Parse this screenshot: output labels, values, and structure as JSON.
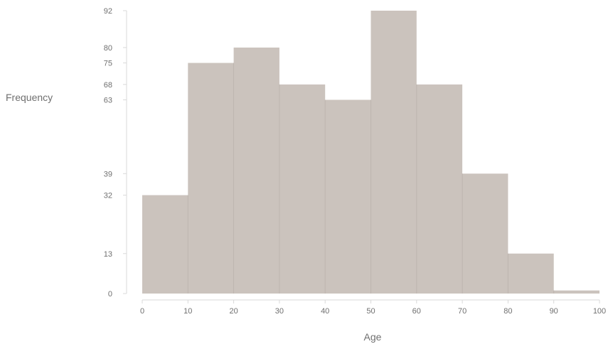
{
  "chart_data": {
    "type": "bar",
    "subtype": "histogram",
    "title": "",
    "xlabel": "Age",
    "ylabel": "Frequency",
    "bins": [
      {
        "start": 0,
        "end": 10,
        "value": 32
      },
      {
        "start": 10,
        "end": 20,
        "value": 75
      },
      {
        "start": 20,
        "end": 30,
        "value": 80
      },
      {
        "start": 30,
        "end": 40,
        "value": 68
      },
      {
        "start": 40,
        "end": 50,
        "value": 63
      },
      {
        "start": 50,
        "end": 60,
        "value": 92
      },
      {
        "start": 60,
        "end": 70,
        "value": 68
      },
      {
        "start": 70,
        "end": 80,
        "value": 39
      },
      {
        "start": 80,
        "end": 90,
        "value": 13
      },
      {
        "start": 90,
        "end": 100,
        "value": 1
      }
    ],
    "x_ticks": [
      "0",
      "10",
      "20",
      "30",
      "40",
      "50",
      "60",
      "70",
      "80",
      "90",
      "100"
    ],
    "y_ticks": [
      "0",
      "13",
      "32",
      "39",
      "63",
      "68",
      "75",
      "80",
      "92"
    ],
    "xlim": [
      0,
      100
    ],
    "ylim": [
      0,
      92
    ],
    "grid": false,
    "legend": "none",
    "colors": {
      "bar": "#cbc3bd",
      "axis": "#d9d9d9",
      "text": "#6f6f6f"
    }
  }
}
